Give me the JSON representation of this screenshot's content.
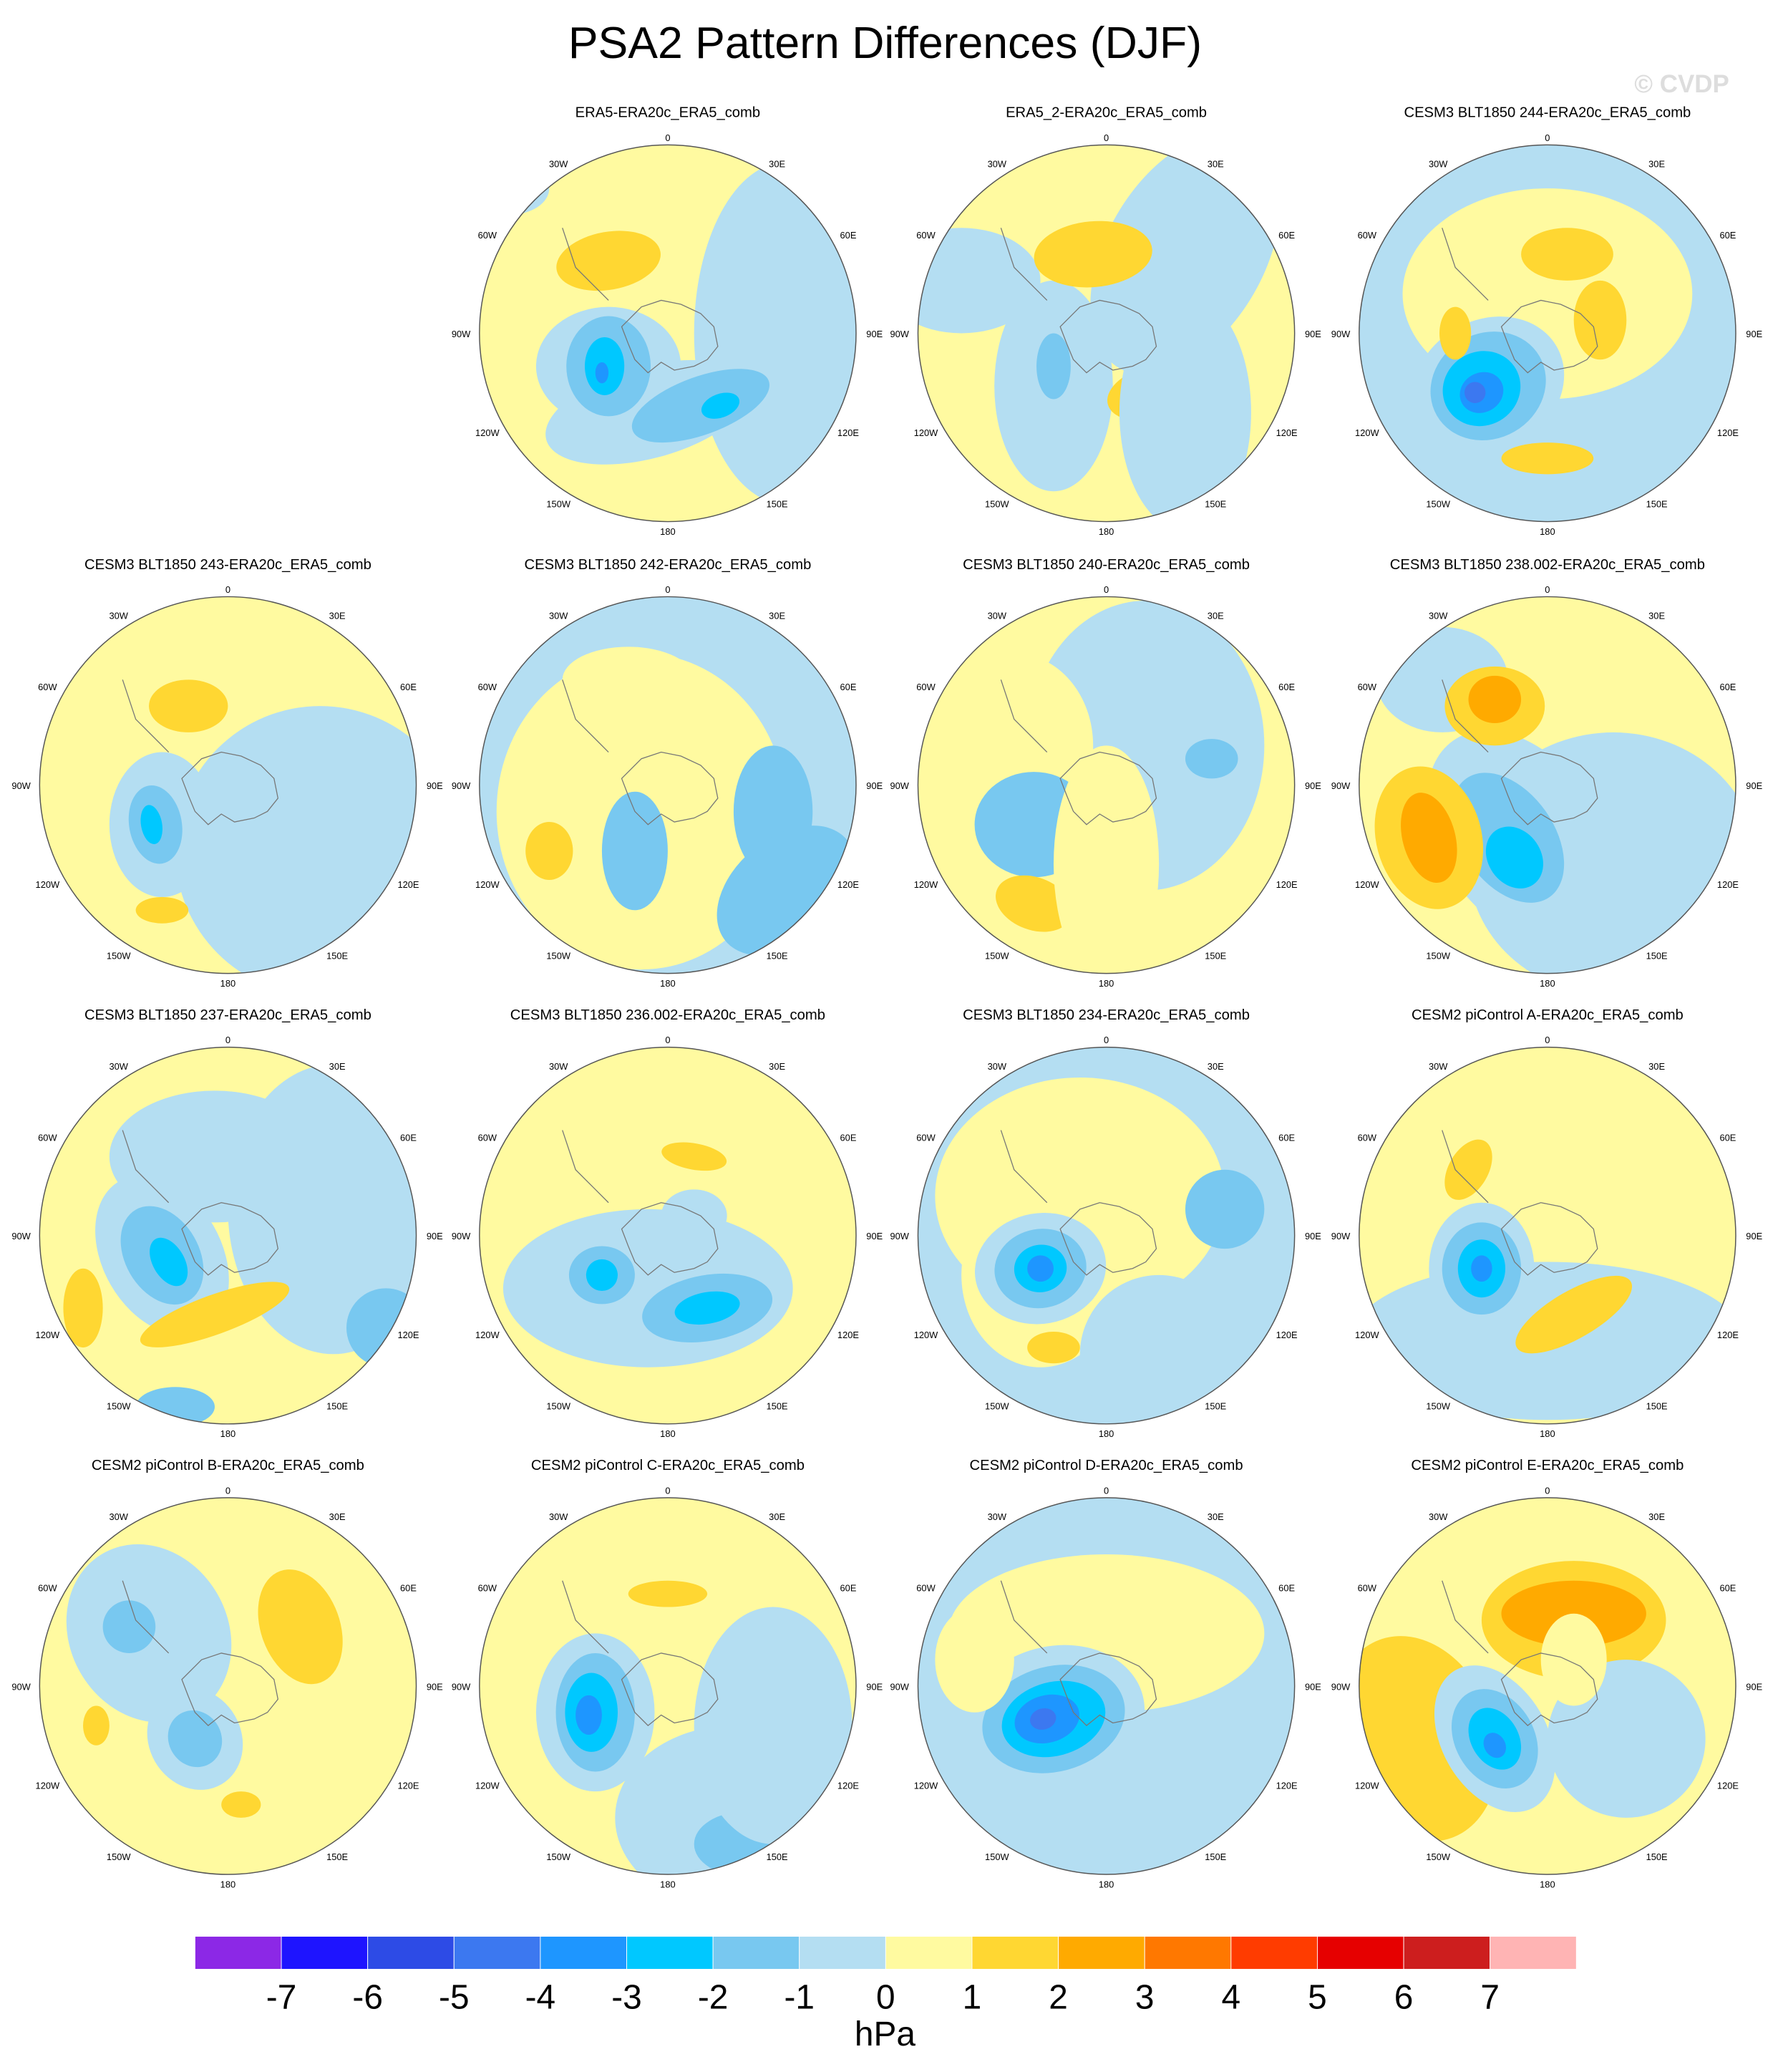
{
  "title": "PSA2 Pattern Differences (DJF)",
  "watermark": "© CVDP",
  "panels": [
    {
      "title": "ERA5-ERA20c_ERA5_comb"
    },
    {
      "title": "ERA5_2-ERA20c_ERA5_comb"
    },
    {
      "title": "CESM3 BLT1850 244-ERA20c_ERA5_comb"
    },
    {
      "title": "CESM3 BLT1850 243-ERA20c_ERA5_comb"
    },
    {
      "title": "CESM3 BLT1850 242-ERA20c_ERA5_comb"
    },
    {
      "title": "CESM3 BLT1850 240-ERA20c_ERA5_comb"
    },
    {
      "title": "CESM3 BLT1850 238.002-ERA20c_ERA5_comb"
    },
    {
      "title": "CESM3 BLT1850 237-ERA20c_ERA5_comb"
    },
    {
      "title": "CESM3 BLT1850 236.002-ERA20c_ERA5_comb"
    },
    {
      "title": "CESM3 BLT1850 234-ERA20c_ERA5_comb"
    },
    {
      "title": "CESM2 piControl A-ERA20c_ERA5_comb"
    },
    {
      "title": "CESM2 piControl B-ERA20c_ERA5_comb"
    },
    {
      "title": "CESM2 piControl C-ERA20c_ERA5_comb"
    },
    {
      "title": "CESM2 piControl D-ERA20c_ERA5_comb"
    },
    {
      "title": "CESM2 piControl E-ERA20c_ERA5_comb"
    }
  ],
  "longitude_labels": [
    "0",
    "30E",
    "60E",
    "90E",
    "120E",
    "150E",
    "180",
    "150W",
    "120W",
    "90W",
    "60W",
    "30W"
  ],
  "colorbar": {
    "levels": [
      -7,
      -6,
      -5,
      -4,
      -3,
      -2,
      -1,
      0,
      1,
      2,
      3,
      4,
      5,
      6,
      7
    ],
    "colors": [
      "#8c28e6",
      "#1e14ff",
      "#2d4be6",
      "#3c78f0",
      "#1e96ff",
      "#00c8ff",
      "#78c8f0",
      "#b4def2",
      "#fffaa0",
      "#ffd732",
      "#ffaa00",
      "#ff7800",
      "#ff3c00",
      "#e60000",
      "#cd1e1e",
      "#ffb4b4"
    ],
    "unit": "hPa"
  }
}
